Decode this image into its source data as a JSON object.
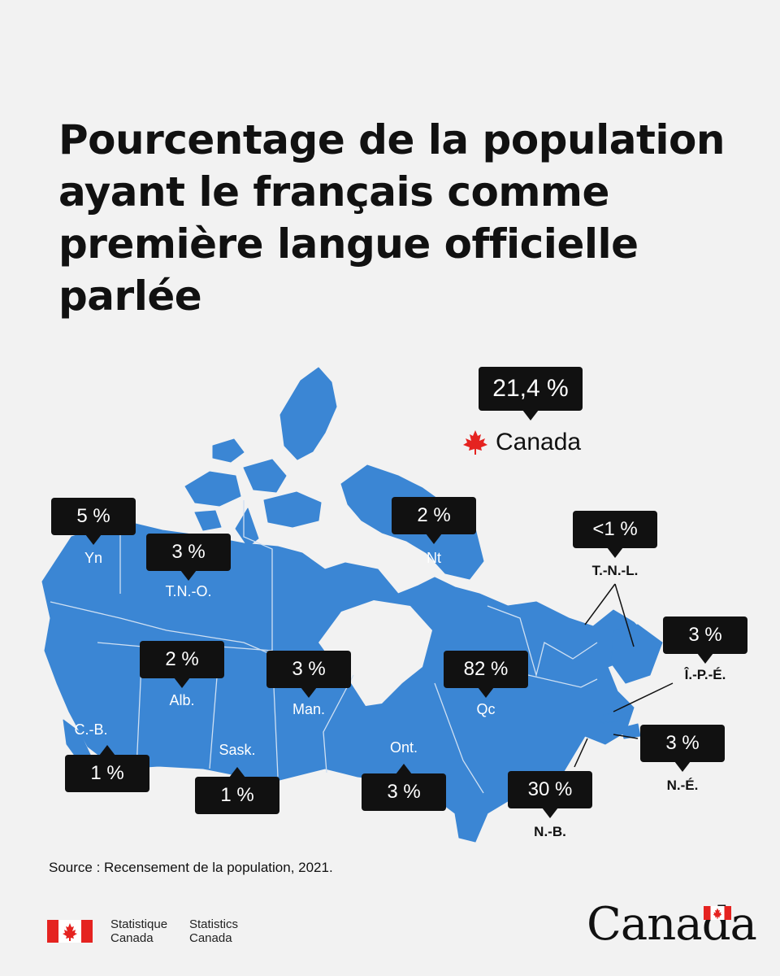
{
  "title": "Pourcentage de la population ayant le français comme première langue officielle parlée",
  "national": {
    "value": "21,4 %",
    "label": "Canada"
  },
  "regions": [
    {
      "code": "Yn",
      "value": "5 %"
    },
    {
      "code": "T.N.-O.",
      "value": "3 %"
    },
    {
      "code": "Nt",
      "value": "2 %"
    },
    {
      "code": "T.-N.-L.",
      "value": "<1 %"
    },
    {
      "code": "Î.-P.-É.",
      "value": "3 %"
    },
    {
      "code": "C.-B.",
      "value": "1 %"
    },
    {
      "code": "Alb.",
      "value": "2 %"
    },
    {
      "code": "Sask.",
      "value": "1 %"
    },
    {
      "code": "Man.",
      "value": "3 %"
    },
    {
      "code": "Ont.",
      "value": "3 %"
    },
    {
      "code": "Qc",
      "value": "82 %"
    },
    {
      "code": "N.-B.",
      "value": "30 %"
    },
    {
      "code": "N.-É.",
      "value": "3 %"
    }
  ],
  "source": "Source : Recensement de la population, 2021.",
  "footer": {
    "statcan_fr_line1": "Statistique",
    "statcan_fr_line2": "Canada",
    "statcan_en_line1": "Statistics",
    "statcan_en_line2": "Canada",
    "wordmark": "Canada"
  },
  "colors": {
    "land": "#3b86d4",
    "callout": "#111111",
    "flag_red": "#e52320",
    "background": "#f2f2f2"
  }
}
